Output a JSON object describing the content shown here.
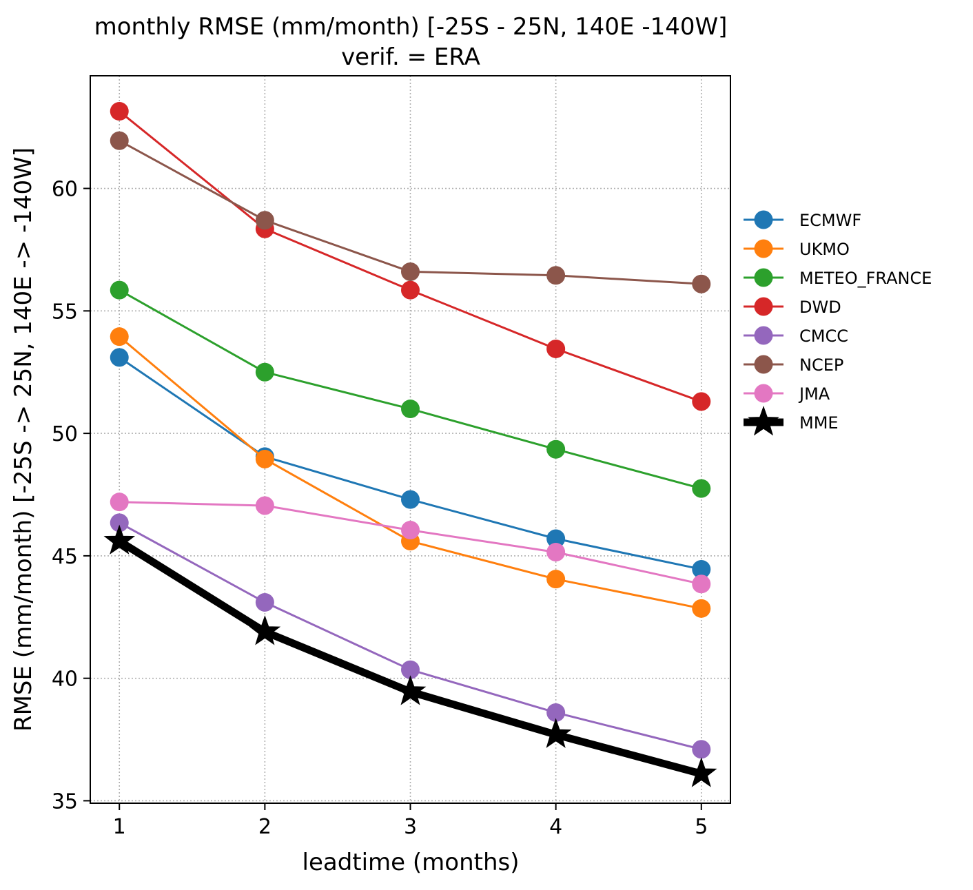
{
  "chart_data": {
    "type": "line",
    "title": "monthly RMSE (mm/month) [-25S - 25N, 140E -140W]",
    "subtitle": "verif. = ERA",
    "xlabel": "leadtime (months)",
    "ylabel": "RMSE (mm/month) [-25S -> 25N, 140E -> -140W]",
    "x": [
      1,
      2,
      3,
      4,
      5
    ],
    "xlim": [
      0.8,
      5.2
    ],
    "ylim": [
      34.9,
      64.6
    ],
    "xticks": [
      "1",
      "2",
      "3",
      "4",
      "5"
    ],
    "yticks": [
      "35",
      "40",
      "45",
      "50",
      "55",
      "60"
    ],
    "grid": true,
    "legend_position": "outside-right",
    "series": [
      {
        "name": "ECMWF",
        "color": "#1f77b4",
        "marker": "circle",
        "values": [
          53.1,
          49.05,
          47.3,
          45.7,
          44.45
        ]
      },
      {
        "name": "UKMO",
        "color": "#ff7f0e",
        "marker": "circle",
        "values": [
          53.95,
          48.95,
          45.6,
          44.05,
          42.85
        ]
      },
      {
        "name": "METEO_FRANCE",
        "color": "#2ca02c",
        "marker": "circle",
        "values": [
          55.85,
          52.5,
          51.0,
          49.35,
          47.75
        ]
      },
      {
        "name": "DWD",
        "color": "#d62728",
        "marker": "circle",
        "values": [
          63.15,
          58.35,
          55.85,
          53.45,
          51.3
        ]
      },
      {
        "name": "CMCC",
        "color": "#9467bd",
        "marker": "circle",
        "values": [
          46.35,
          43.1,
          40.35,
          38.6,
          37.1
        ]
      },
      {
        "name": "NCEP",
        "color": "#8c564b",
        "marker": "circle",
        "values": [
          61.95,
          58.7,
          56.6,
          56.45,
          56.1
        ]
      },
      {
        "name": "JMA",
        "color": "#e377c2",
        "marker": "circle",
        "values": [
          47.2,
          47.05,
          46.05,
          45.15,
          43.85
        ]
      },
      {
        "name": "MME",
        "color": "#000000",
        "marker": "star",
        "values": [
          45.6,
          41.9,
          39.45,
          37.7,
          36.1
        ]
      }
    ]
  }
}
